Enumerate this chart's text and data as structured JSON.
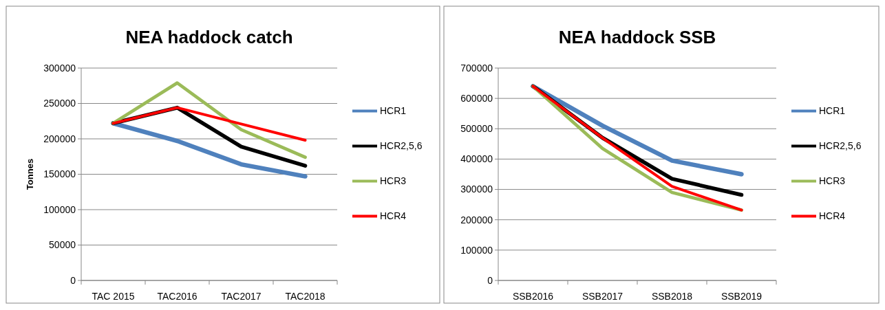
{
  "chart_data": [
    {
      "type": "line",
      "title": "NEA haddock catch",
      "ylabel": "Tonnes",
      "categories": [
        "TAC 2015",
        "TAC2016",
        "TAC2017",
        "TAC2018"
      ],
      "series": [
        {
          "name": "HCR1",
          "color": "#4f81bd",
          "values": [
            222000,
            197000,
            164000,
            147000
          ]
        },
        {
          "name": "HCR2,5,6",
          "color": "#000000",
          "values": [
            222000,
            244000,
            189000,
            162000
          ]
        },
        {
          "name": "HCR3",
          "color": "#9bbb59",
          "values": [
            222000,
            279000,
            213000,
            174000
          ]
        },
        {
          "name": "HCR4",
          "color": "#ff0000",
          "values": [
            222000,
            244000,
            221000,
            198000
          ]
        }
      ],
      "ylim": [
        0,
        300000
      ],
      "yticks": [
        0,
        50000,
        100000,
        150000,
        200000,
        250000,
        300000
      ],
      "grid": "y",
      "legend": "right",
      "marker": "none"
    },
    {
      "type": "line",
      "title": "NEA haddock SSB",
      "categories": [
        "SSB2016",
        "SSB2017",
        "SSB2018",
        "SSB2019"
      ],
      "series": [
        {
          "name": "HCR1",
          "color": "#4f81bd",
          "values": [
            640000,
            510000,
            395000,
            350000
          ]
        },
        {
          "name": "HCR2,5,6",
          "color": "#000000",
          "values": [
            640000,
            470000,
            335000,
            282000
          ]
        },
        {
          "name": "HCR3",
          "color": "#9bbb59",
          "values": [
            640000,
            435000,
            290000,
            232000
          ]
        },
        {
          "name": "HCR4",
          "color": "#ff0000",
          "values": [
            640000,
            470000,
            310000,
            232000
          ]
        }
      ],
      "ylim": [
        0,
        700000
      ],
      "yticks": [
        0,
        100000,
        200000,
        300000,
        400000,
        500000,
        600000,
        700000
      ],
      "grid": "y",
      "legend": "right",
      "marker": "none"
    }
  ]
}
